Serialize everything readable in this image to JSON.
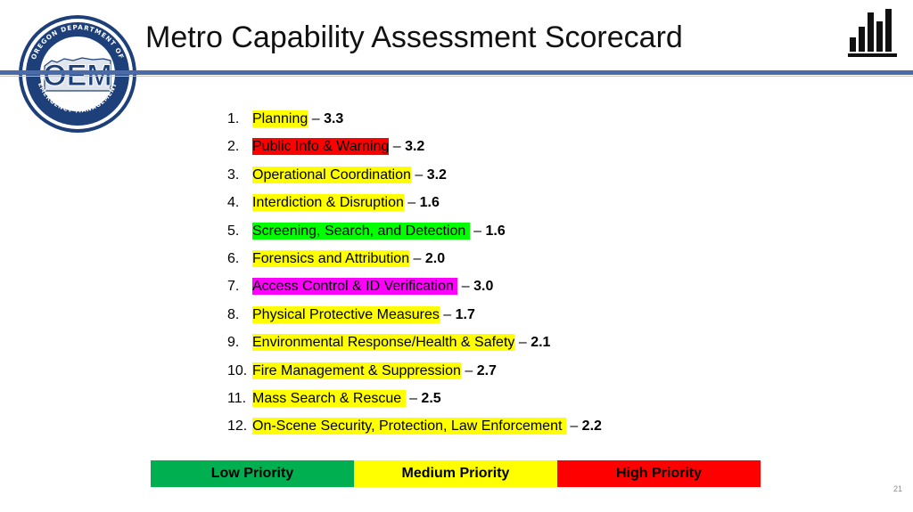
{
  "logo": {
    "name": "OEM",
    "ring_text": "OREGON DEPARTMENT OF EMERGENCY MANAGEMENT",
    "icon": "oem-seal-logo"
  },
  "header": {
    "title": "Metro Capability Assessment Scorecard",
    "icon": "bar-chart-icon"
  },
  "colors": {
    "header_rule": "#4a6aa8",
    "low": "#00b050",
    "medium": "#ffff00",
    "high": "#ff0000",
    "bright_green": "#00ff00",
    "magenta": "#ff00ff"
  },
  "capabilities": [
    {
      "num": "1.",
      "name": "Planning",
      "score": "3.3",
      "color": "#ffff00"
    },
    {
      "num": "2.",
      "name": "Public Info & Warning",
      "score": "3.2",
      "color": "#ff0000"
    },
    {
      "num": "3.",
      "name": "Operational Coordination",
      "score": "3.2",
      "color": "#ffff00"
    },
    {
      "num": "4.",
      "name": "Interdiction & Disruption",
      "score": "1.6",
      "color": "#ffff00"
    },
    {
      "num": "5.",
      "name": "Screening, Search, and Detection ",
      "score": "1.6",
      "color": "#00ff00"
    },
    {
      "num": "6.",
      "name": "Forensics and Attribution",
      "score": "2.0",
      "color": "#ffff00"
    },
    {
      "num": "7.",
      "name": "Access Control & ID Verification ",
      "score": "3.0",
      "color": "#ff00ff"
    },
    {
      "num": "8.",
      "name": "Physical Protective Measures",
      "score": "1.7",
      "color": "#ffff00"
    },
    {
      "num": "9.",
      "name": "Environmental Response/Health & Safety",
      "score": "2.1",
      "color": "#ffff00"
    },
    {
      "num": "10.",
      "name": "Fire Management & Suppression",
      "score": "2.7",
      "color": "#ffff00"
    },
    {
      "num": "11.",
      "name": "Mass Search & Rescue ",
      "score": "2.5",
      "color": "#ffff00"
    },
    {
      "num": "12.",
      "name": "On-Scene Security, Protection, Law Enforcement ",
      "score": "2.2",
      "color": "#ffff00"
    }
  ],
  "legend": [
    {
      "label": "Low Priority",
      "color": "#00b050"
    },
    {
      "label": "Medium Priority",
      "color": "#ffff00"
    },
    {
      "label": "High Priority",
      "color": "#ff0000"
    }
  ],
  "slide_number": "21"
}
